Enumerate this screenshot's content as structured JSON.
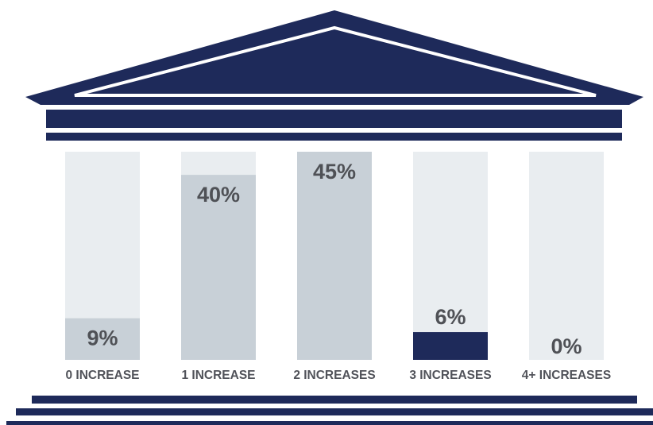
{
  "chart_data": {
    "type": "bar",
    "categories": [
      "0 INCREASE",
      "1 INCREASE",
      "2 INCREASES",
      "3 INCREASES",
      "4+ INCREASES"
    ],
    "values": [
      9,
      40,
      45,
      6,
      0
    ],
    "value_labels": [
      "9%",
      "40%",
      "45%",
      "6%",
      "0%"
    ],
    "ylim": [
      0,
      45
    ],
    "highlight_index": 3,
    "colors": {
      "navy": "#1e2a5a",
      "bar": "#c8d0d7",
      "track": "#e9edf0",
      "label_text": "#505259",
      "value_text_gray": "#4f5156"
    }
  }
}
